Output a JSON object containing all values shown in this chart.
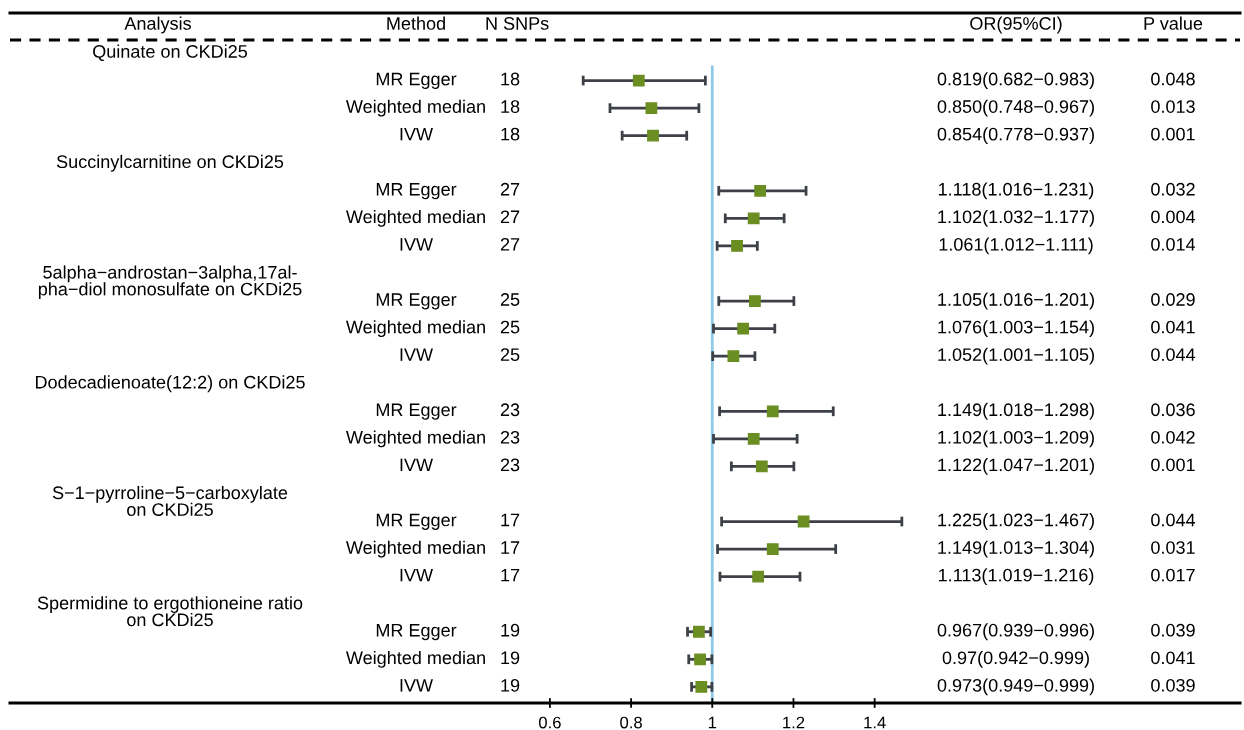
{
  "chart_data": {
    "type": "scatter",
    "orientation": "horizontal",
    "categories": [
      null,
      "MR Egger",
      "Weighted median",
      "IVW",
      null,
      "MR Egger",
      "Weighted median",
      "IVW",
      null,
      "MR Egger",
      "Weighted median",
      "IVW",
      null,
      "MR Egger",
      "Weighted median",
      "IVW",
      null,
      "MR Egger",
      "Weighted median",
      "IVW",
      null,
      "MR Egger",
      "Weighted median",
      "IVW"
    ],
    "values": [
      null,
      0.819,
      0.85,
      0.854,
      null,
      1.118,
      1.102,
      1.061,
      null,
      1.105,
      1.076,
      1.052,
      null,
      1.149,
      1.102,
      1.122,
      null,
      1.225,
      1.149,
      1.113,
      null,
      0.967,
      0.97,
      0.973
    ],
    "errors": [
      null,
      [
        0.682,
        0.983
      ],
      [
        0.748,
        0.967
      ],
      [
        0.778,
        0.937
      ],
      null,
      [
        1.016,
        1.231
      ],
      [
        1.032,
        1.177
      ],
      [
        1.012,
        1.111
      ],
      null,
      [
        1.016,
        1.201
      ],
      [
        1.003,
        1.154
      ],
      [
        1.001,
        1.105
      ],
      null,
      [
        1.018,
        1.298
      ],
      [
        1.003,
        1.209
      ],
      [
        1.047,
        1.201
      ],
      null,
      [
        1.023,
        1.467
      ],
      [
        1.013,
        1.304
      ],
      [
        1.019,
        1.216
      ],
      null,
      [
        0.939,
        0.996
      ],
      [
        0.942,
        0.999
      ],
      [
        0.949,
        0.999
      ]
    ],
    "annotations": [
      "Analysis",
      "Method",
      "N SNPs",
      "OR(95%CI)",
      "P value",
      "Quinate on CKDi25",
      "Succinylcarnitine on CKDi25",
      "5alpha−androstan−3alpha,17al-\npha−diol monosulfate on CKDi25",
      "Dodecadienoate(12:2) on CKDi25",
      "S−1−pyrroline−5−carboxylate\non CKDi25",
      "Spermidine to ergothioneine ratio\non CKDi25",
      "18",
      "18",
      "18",
      "27",
      "27",
      "27",
      "25",
      "25",
      "25",
      "23",
      "23",
      "23",
      "17",
      "17",
      "17",
      "19",
      "19",
      "19",
      "0.819(0.682−0.983)",
      "0.850(0.748−0.967)",
      "0.854(0.778−0.937)",
      "1.118(1.016−1.231)",
      "1.102(1.032−1.177)",
      "1.061(1.012−1.111)",
      "1.105(1.016−1.201)",
      "1.076(1.003−1.154)",
      "1.052(1.001−1.105)",
      "1.149(1.018−1.298)",
      "1.102(1.003−1.209)",
      "1.122(1.047−1.201)",
      "1.225(1.023−1.467)",
      "1.149(1.013−1.304)",
      "1.113(1.019−1.216)",
      "0.967(0.939−0.996)",
      "0.97(0.942−0.999)",
      "0.973(0.949−0.999)",
      "0.048",
      "0.013",
      "0.001",
      "0.032",
      "0.004",
      "0.014",
      "0.029",
      "0.041",
      "0.044",
      "0.036",
      "0.042",
      "0.001",
      "0.044",
      "0.031",
      "0.017",
      "0.039",
      "0.041",
      "0.039"
    ],
    "color": "#6b8e23",
    "marker": "square",
    "grid": false,
    "legend": false,
    "xlim": [
      -0.73,
      2.3
    ],
    "xticks": [
      0.6,
      0.8,
      1,
      1.2,
      1.4
    ],
    "ref_lines": [
      {
        "axis": "x",
        "value": 1,
        "color": "#8ecae6"
      }
    ]
  }
}
